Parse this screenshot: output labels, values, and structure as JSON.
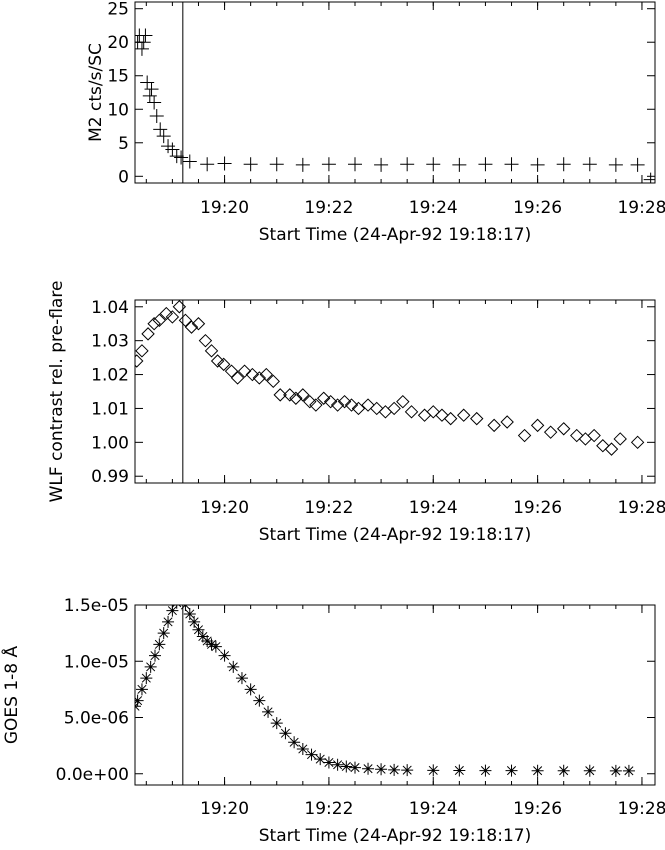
{
  "chart_data": [
    {
      "type": "scatter",
      "marker": "plus",
      "ylabel": "M2 cts/s/SC",
      "xlabel": "Start Time (24-Apr-92 19:18:17)",
      "ylim": [
        -1,
        26
      ],
      "yticks": [
        0,
        5,
        10,
        15,
        20,
        25
      ],
      "ytick_labels": [
        "0",
        "5",
        "10",
        "15",
        "20",
        "25"
      ],
      "vline_time": "19:19:12",
      "series": [
        {
          "x": [
            "19:18:20",
            "19:18:22",
            "19:18:25",
            "19:18:27",
            "19:18:29",
            "19:18:31",
            "19:18:34",
            "19:18:36",
            "19:18:39",
            "19:18:42",
            "19:18:46",
            "19:18:50",
            "19:18:55",
            "19:19:00",
            "19:19:05",
            "19:19:10",
            "19:19:20",
            "19:19:40",
            "19:20:00",
            "19:20:30",
            "19:21:00",
            "19:21:30",
            "19:22:00",
            "19:22:30",
            "19:23:00",
            "19:23:30",
            "19:24:00",
            "19:24:30",
            "19:25:00",
            "19:25:30",
            "19:26:00",
            "19:26:30",
            "19:27:00",
            "19:27:30",
            "19:27:55",
            "19:28:10"
          ],
          "values": [
            20,
            21,
            19,
            20,
            21,
            14,
            12,
            13,
            11,
            9,
            7,
            6,
            4.5,
            4,
            3,
            2.8,
            2.2,
            1.8,
            1.9,
            1.8,
            1.8,
            1.7,
            1.8,
            1.8,
            1.7,
            1.8,
            1.8,
            1.7,
            1.8,
            1.8,
            1.7,
            1.8,
            1.8,
            1.7,
            1.7,
            -0.5
          ]
        }
      ]
    },
    {
      "type": "scatter",
      "marker": "diamond",
      "ylabel": "WLF contrast rel. pre-flare",
      "xlabel": "Start Time (24-Apr-92 19:18:17)",
      "ylim": [
        0.988,
        1.042
      ],
      "yticks": [
        0.99,
        1.0,
        1.01,
        1.02,
        1.03,
        1.04
      ],
      "ytick_labels": [
        "0.99",
        "1.00",
        "1.01",
        "1.02",
        "1.03",
        "1.04"
      ],
      "vline_time": "19:19:12",
      "series": [
        {
          "x": [
            "19:18:19",
            "19:18:25",
            "19:18:32",
            "19:18:39",
            "19:18:45",
            "19:18:53",
            "19:19:00",
            "19:19:08",
            "19:19:15",
            "19:19:22",
            "19:19:30",
            "19:19:38",
            "19:19:45",
            "19:19:52",
            "19:19:59",
            "19:20:08",
            "19:20:15",
            "19:20:23",
            "19:20:32",
            "19:20:40",
            "19:20:48",
            "19:20:56",
            "19:21:04",
            "19:21:15",
            "19:21:22",
            "19:21:30",
            "19:21:38",
            "19:21:45",
            "19:21:54",
            "19:22:02",
            "19:22:10",
            "19:22:18",
            "19:22:26",
            "19:22:34",
            "19:22:45",
            "19:22:55",
            "19:23:05",
            "19:23:15",
            "19:23:25",
            "19:23:35",
            "19:23:50",
            "19:24:00",
            "19:24:10",
            "19:24:20",
            "19:24:35",
            "19:24:50",
            "19:25:10",
            "19:25:25",
            "19:25:45",
            "19:26:00",
            "19:26:15",
            "19:26:30",
            "19:26:45",
            "19:26:55",
            "19:27:05",
            "19:27:15",
            "19:27:25",
            "19:27:35",
            "19:27:55"
          ],
          "values": [
            1.024,
            1.027,
            1.032,
            1.035,
            1.036,
            1.038,
            1.037,
            1.04,
            1.036,
            1.034,
            1.035,
            1.03,
            1.027,
            1.024,
            1.023,
            1.021,
            1.019,
            1.021,
            1.02,
            1.019,
            1.02,
            1.018,
            1.014,
            1.014,
            1.013,
            1.014,
            1.012,
            1.011,
            1.013,
            1.012,
            1.011,
            1.012,
            1.011,
            1.01,
            1.011,
            1.01,
            1.009,
            1.01,
            1.012,
            1.009,
            1.008,
            1.009,
            1.008,
            1.007,
            1.008,
            1.007,
            1.005,
            1.006,
            1.002,
            1.005,
            1.003,
            1.004,
            1.002,
            1.001,
            1.002,
            0.999,
            0.998,
            1.001,
            1.0
          ]
        }
      ]
    },
    {
      "type": "scatter",
      "marker": "asterisk",
      "ylabel": "GOES 1-8 Å",
      "xlabel": "Start Time (24-Apr-92 19:18:17)",
      "ylim": [
        -1e-06,
        1.5e-05
      ],
      "yticks": [
        0,
        5e-06,
        1e-05,
        1.5e-05
      ],
      "ytick_labels": [
        "0.0e+00",
        "5.0e-06",
        "1.0e-05",
        "1.5e-05"
      ],
      "vline_time": "19:19:12",
      "series": [
        {
          "x": [
            "19:18:17",
            "19:18:20",
            "19:18:25",
            "19:18:30",
            "19:18:35",
            "19:18:40",
            "19:18:45",
            "19:18:50",
            "19:18:55",
            "19:19:00",
            "19:19:05",
            "19:19:15",
            "19:19:20",
            "19:19:25",
            "19:19:30",
            "19:19:35",
            "19:19:40",
            "19:19:45",
            "19:19:50",
            "19:20:00",
            "19:20:10",
            "19:20:20",
            "19:20:30",
            "19:20:40",
            "19:20:50",
            "19:21:00",
            "19:21:10",
            "19:21:20",
            "19:21:30",
            "19:21:40",
            "19:21:50",
            "19:22:00",
            "19:22:10",
            "19:22:20",
            "19:22:30",
            "19:22:45",
            "19:23:00",
            "19:23:15",
            "19:23:30",
            "19:24:00",
            "19:24:30",
            "19:25:00",
            "19:25:30",
            "19:26:00",
            "19:26:30",
            "19:27:00",
            "19:27:30",
            "19:27:45"
          ],
          "values": [
            6e-06,
            6.5e-06,
            7.5e-06,
            8.5e-06,
            9.5e-06,
            1.05e-05,
            1.15e-05,
            1.25e-05,
            1.35e-05,
            1.45e-05,
            1.52e-05,
            1.5e-05,
            1.42e-05,
            1.35e-05,
            1.28e-05,
            1.22e-05,
            1.18e-05,
            1.15e-05,
            1.13e-05,
            1.05e-05,
            9.5e-06,
            8.5e-06,
            7.5e-06,
            6.5e-06,
            5.5e-06,
            4.5e-06,
            3.6e-06,
            2.8e-06,
            2.2e-06,
            1.7e-06,
            1.3e-06,
            1e-06,
            8e-07,
            6.5e-07,
            5.5e-07,
            4.5e-07,
            4e-07,
            3.5e-07,
            3.2e-07,
            3e-07,
            2.9e-07,
            2.8e-07,
            2.8e-07,
            2.7e-07,
            2.7e-07,
            2.7e-07,
            2.6e-07,
            2.6e-07
          ]
        }
      ]
    }
  ],
  "xaxis": {
    "range": [
      "19:18:17",
      "19:28:15"
    ],
    "ticks": [
      "19:20",
      "19:22",
      "19:24",
      "19:26",
      "19:28"
    ]
  }
}
